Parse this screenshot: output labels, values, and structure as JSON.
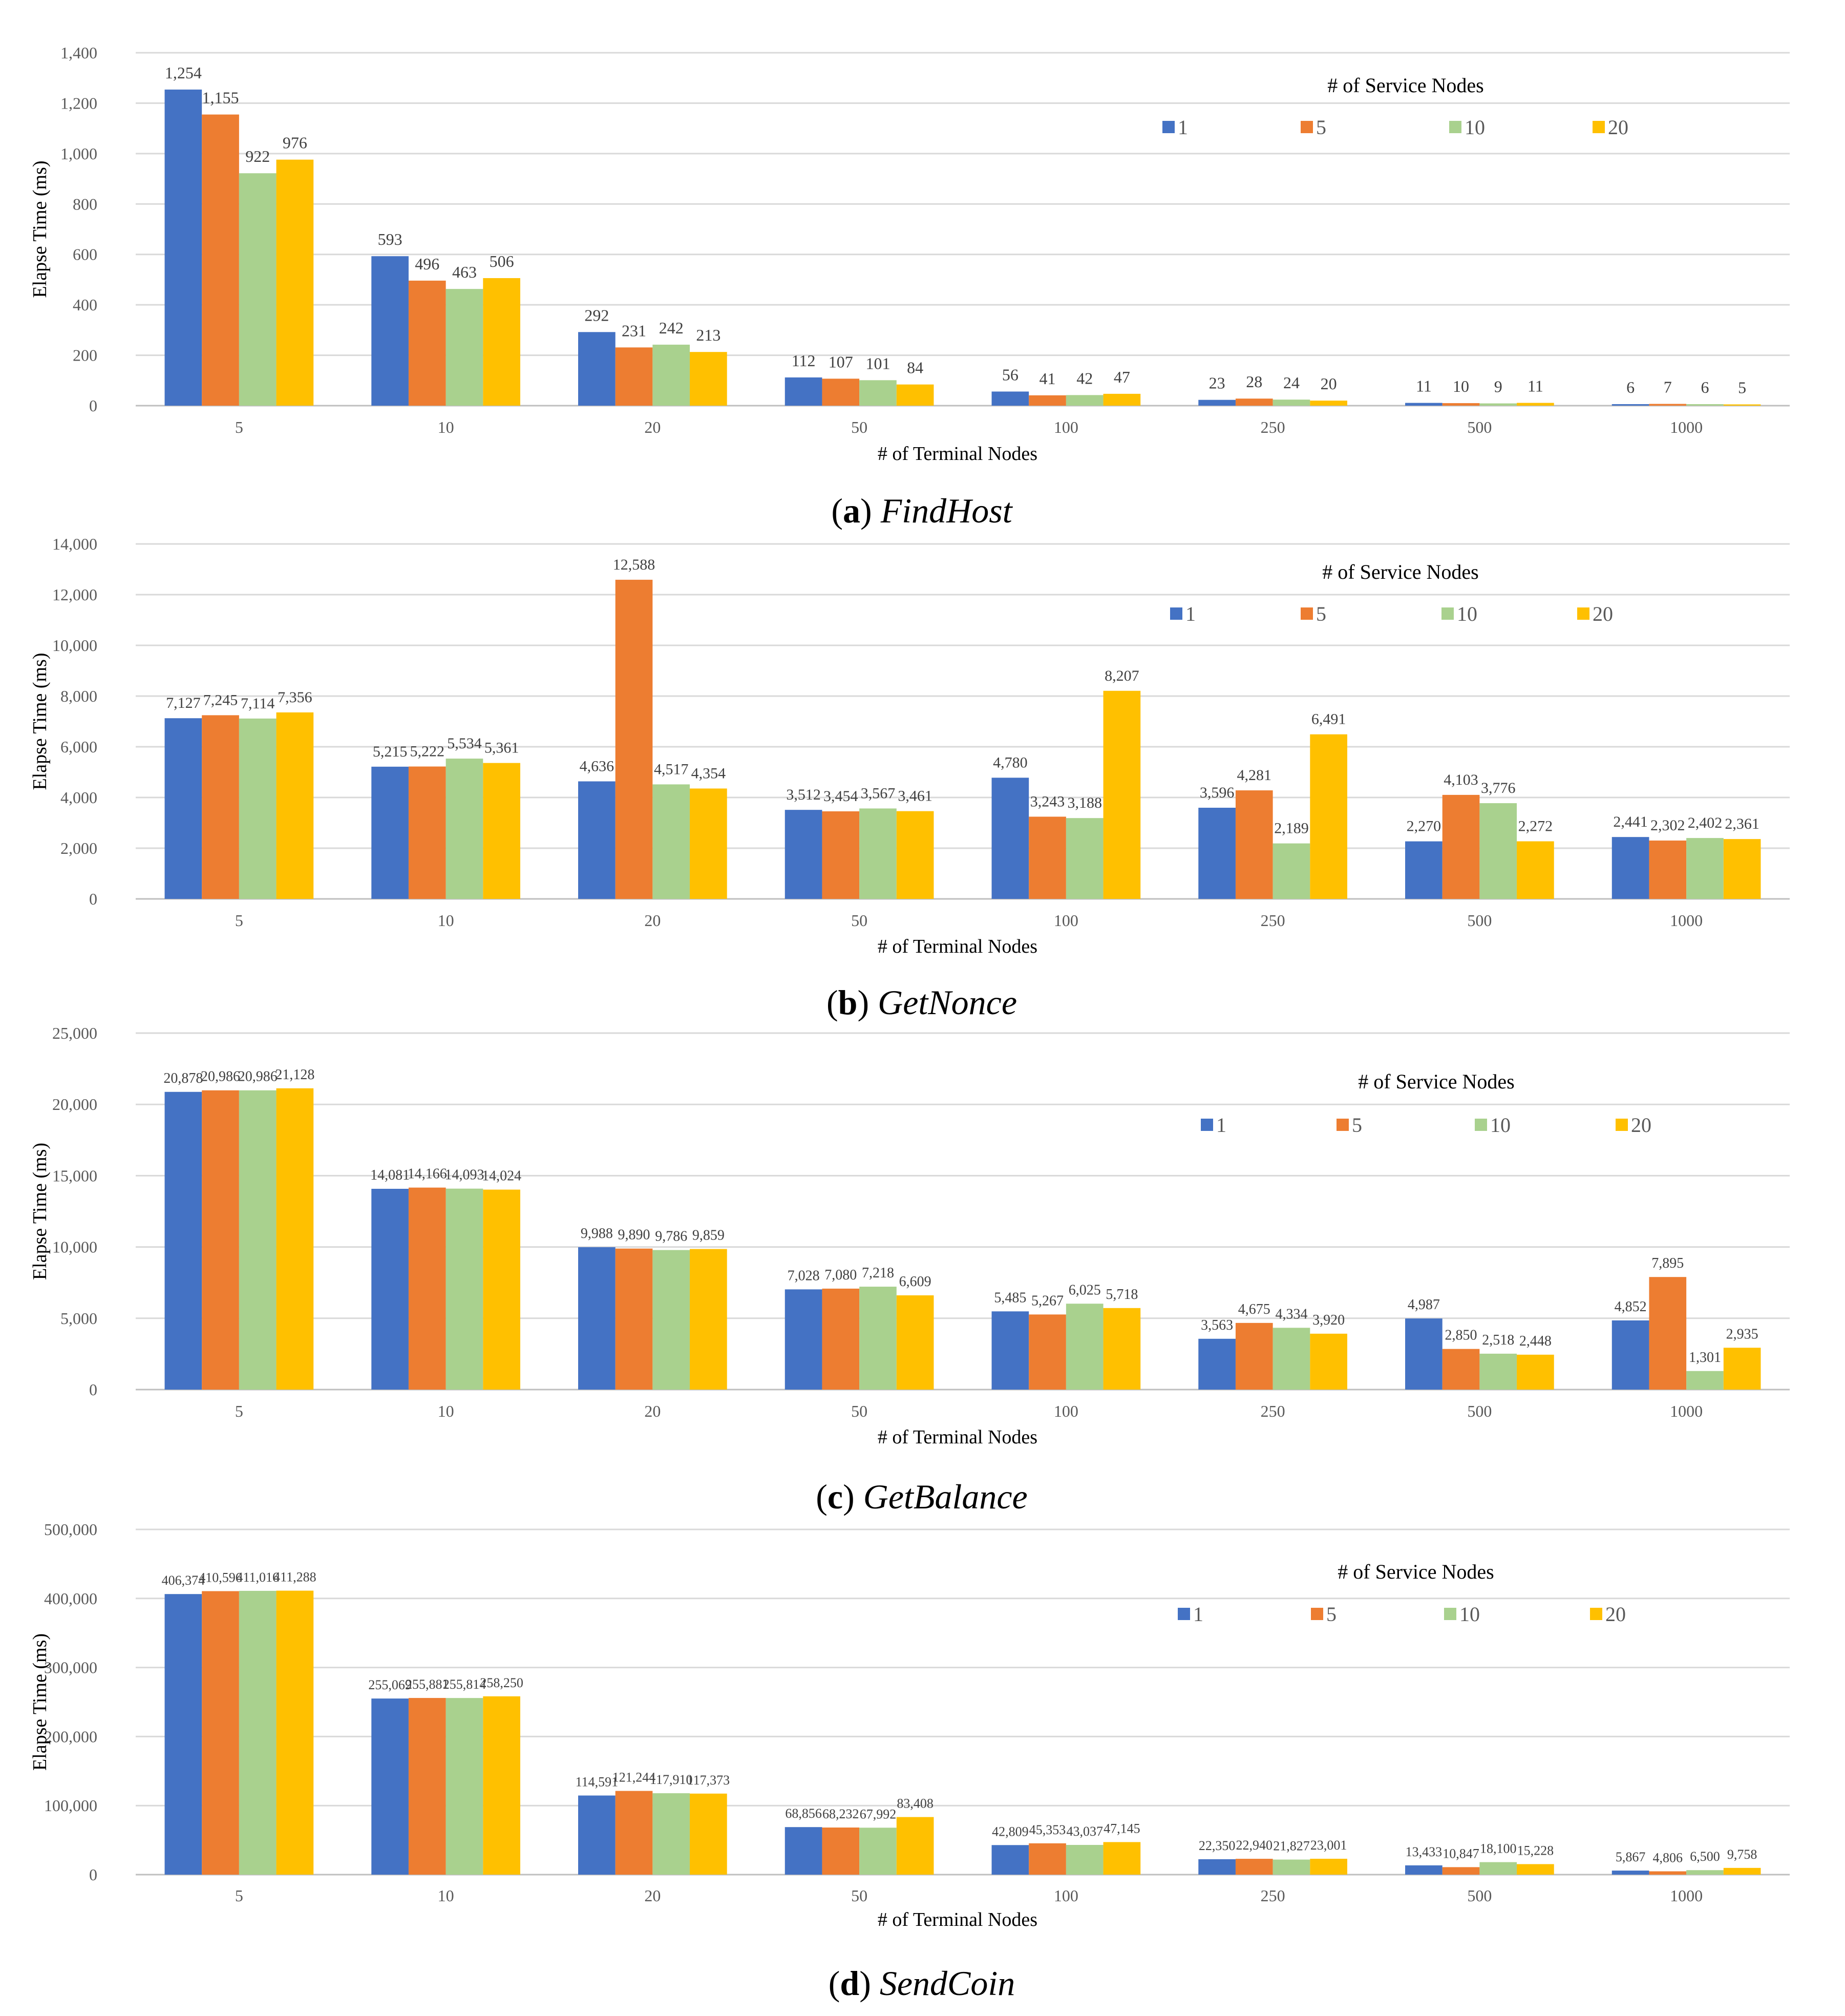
{
  "colors": {
    "s1": "#4472C4",
    "s5": "#ED7D31",
    "s10": "#A9D18E",
    "s20": "#FFC000"
  },
  "chart_data": [
    {
      "type": "bar",
      "caption_letter": "a",
      "caption_name": "FindHost",
      "ylabel": "Elapse Time (ms)",
      "xlabel": "# of Terminal Nodes",
      "legend_title": "# of Service Nodes",
      "categories": [
        "5",
        "10",
        "20",
        "50",
        "100",
        "250",
        "500",
        "1000"
      ],
      "ylim": [
        0,
        1400
      ],
      "yticks": [
        0,
        200,
        400,
        600,
        800,
        1000,
        1200,
        1400
      ],
      "ytick_labels": [
        "0",
        "200",
        "400",
        "600",
        "800",
        "1,000",
        "1,200",
        "1,400"
      ],
      "series": [
        {
          "name": "1",
          "values": [
            1254,
            593,
            292,
            112,
            56,
            23,
            11,
            6
          ],
          "labels": [
            "1,254",
            "593",
            "292",
            "112",
            "56",
            "23",
            "11",
            "6"
          ]
        },
        {
          "name": "5",
          "values": [
            1155,
            496,
            231,
            107,
            41,
            28,
            10,
            7
          ],
          "labels": [
            "1,155",
            "496",
            "231",
            "107",
            "41",
            "28",
            "10",
            "7"
          ]
        },
        {
          "name": "10",
          "values": [
            922,
            463,
            242,
            101,
            42,
            24,
            9,
            6
          ],
          "labels": [
            "922",
            "463",
            "242",
            "101",
            "42",
            "24",
            "9",
            "6"
          ]
        },
        {
          "name": "20",
          "values": [
            976,
            506,
            213,
            84,
            47,
            20,
            11,
            5
          ],
          "labels": [
            "976",
            "506",
            "213",
            "84",
            "47",
            "20",
            "11",
            "5"
          ]
        }
      ]
    },
    {
      "type": "bar",
      "caption_letter": "b",
      "caption_name": "GetNonce",
      "ylabel": "Elapse Time (ms)",
      "xlabel": "# of Terminal Nodes",
      "legend_title": "# of Service Nodes",
      "categories": [
        "5",
        "10",
        "20",
        "50",
        "100",
        "250",
        "500",
        "1000"
      ],
      "ylim": [
        0,
        14000
      ],
      "yticks": [
        0,
        2000,
        4000,
        6000,
        8000,
        10000,
        12000,
        14000
      ],
      "ytick_labels": [
        "0",
        "2,000",
        "4,000",
        "6,000",
        "8,000",
        "10,000",
        "12,000",
        "14,000"
      ],
      "series": [
        {
          "name": "1",
          "values": [
            7127,
            5215,
            4636,
            3512,
            4780,
            3596,
            2270,
            2441
          ],
          "labels": [
            "7,127",
            "5,215",
            "4,636",
            "3,512",
            "4,780",
            "3,596",
            "2,270",
            "2,441"
          ]
        },
        {
          "name": "5",
          "values": [
            7245,
            5222,
            12588,
            3454,
            3243,
            4281,
            4103,
            2302
          ],
          "labels": [
            "7,245",
            "5,222",
            "12,588",
            "3,454",
            "3,243",
            "4,281",
            "4,103",
            "2,302"
          ]
        },
        {
          "name": "10",
          "values": [
            7114,
            5534,
            4517,
            3567,
            3188,
            2189,
            3776,
            2402
          ],
          "labels": [
            "7,114",
            "5,534",
            "4,517",
            "3,567",
            "3,188",
            "2,189",
            "3,776",
            "2,402"
          ]
        },
        {
          "name": "20",
          "values": [
            7356,
            5361,
            4354,
            3461,
            8207,
            6491,
            2272,
            2361
          ],
          "labels": [
            "7,356",
            "5,361",
            "4,354",
            "3,461",
            "8,207",
            "6,491",
            "2,272",
            "2,361"
          ]
        }
      ]
    },
    {
      "type": "bar",
      "caption_letter": "c",
      "caption_name": "GetBalance",
      "ylabel": "Elapse Time (ms)",
      "xlabel": "# of Terminal Nodes",
      "legend_title": "# of Service Nodes",
      "categories": [
        "5",
        "10",
        "20",
        "50",
        "100",
        "250",
        "500",
        "1000"
      ],
      "ylim": [
        0,
        25000
      ],
      "yticks": [
        0,
        5000,
        10000,
        15000,
        20000,
        25000
      ],
      "ytick_labels": [
        "0",
        "5,000",
        "10,000",
        "15,000",
        "20,000",
        "25,000"
      ],
      "series": [
        {
          "name": "1",
          "values": [
            20878,
            14081,
            9988,
            7028,
            5485,
            3563,
            4987,
            4852
          ],
          "labels": [
            "20,878",
            "14,081",
            "9,988",
            "7,028",
            "5,485",
            "3,563",
            "4,987",
            "4,852"
          ]
        },
        {
          "name": "5",
          "values": [
            20986,
            14166,
            9890,
            7080,
            5267,
            4675,
            2850,
            7895
          ],
          "labels": [
            "20,986",
            "14,166",
            "9,890",
            "7,080",
            "5,267",
            "4,675",
            "2,850",
            "7,895"
          ]
        },
        {
          "name": "10",
          "values": [
            20986,
            14093,
            9786,
            7218,
            6025,
            4334,
            2518,
            1301
          ],
          "labels": [
            "20,986",
            "14,093",
            "9,786",
            "7,218",
            "6,025",
            "4,334",
            "2,518",
            "1,301"
          ]
        },
        {
          "name": "20",
          "values": [
            21128,
            14024,
            9859,
            6609,
            5718,
            3920,
            2448,
            2935
          ],
          "labels": [
            "21,128",
            "14,024",
            "9,859",
            "6,609",
            "5,718",
            "3,920",
            "2,448",
            "2,935"
          ]
        }
      ]
    },
    {
      "type": "bar",
      "caption_letter": "d",
      "caption_name": "SendCoin",
      "ylabel": "Elapse Time (ms)",
      "xlabel": "# of Terminal Nodes",
      "legend_title": "# of Service Nodes",
      "categories": [
        "5",
        "10",
        "20",
        "50",
        "100",
        "250",
        "500",
        "1000"
      ],
      "ylim": [
        0,
        500000
      ],
      "yticks": [
        0,
        100000,
        200000,
        300000,
        400000,
        500000
      ],
      "ytick_labels": [
        "0",
        "100,000",
        "200,000",
        "300,000",
        "400,000",
        "500,000"
      ],
      "series": [
        {
          "name": "1",
          "values": [
            406374,
            255069,
            114591,
            68856,
            42809,
            22350,
            13433,
            5867
          ],
          "labels": [
            "406,374",
            "255,069",
            "114,591",
            "68,856",
            "42,809",
            "22,350",
            "13,433",
            "5,867"
          ]
        },
        {
          "name": "5",
          "values": [
            410596,
            255881,
            121244,
            68232,
            45353,
            22940,
            10847,
            4806
          ],
          "labels": [
            "410,596",
            "255,881",
            "121,244",
            "68,232",
            "45,353",
            "22,940",
            "10,847",
            "4,806"
          ]
        },
        {
          "name": "10",
          "values": [
            411016,
            255814,
            117910,
            67992,
            43037,
            21827,
            18100,
            6500
          ],
          "labels": [
            "411,016",
            "255,814",
            "117,910",
            "67,992",
            "43,037",
            "21,827",
            "18,100",
            "6,500"
          ]
        },
        {
          "name": "20",
          "values": [
            411288,
            258250,
            117373,
            83408,
            47145,
            23001,
            15228,
            9758
          ],
          "labels": [
            "411,288",
            "258,250",
            "117,373",
            "83,408",
            "47,145",
            "23,001",
            "15,228",
            "9,758"
          ]
        }
      ]
    }
  ]
}
